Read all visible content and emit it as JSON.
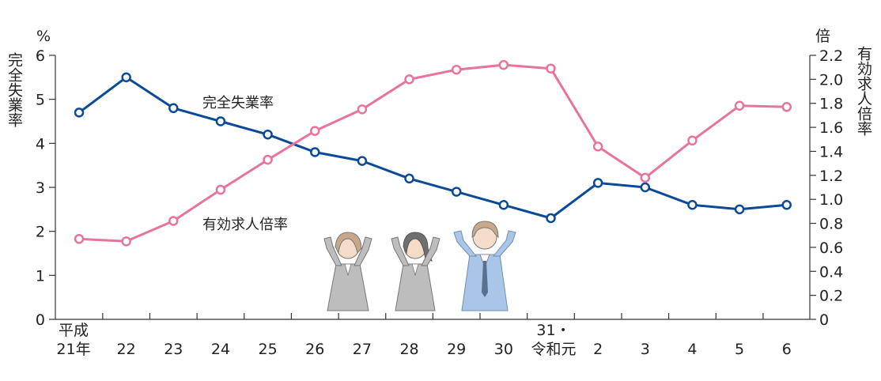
{
  "chart_data": {
    "type": "line",
    "categories": [
      [
        "平成",
        "21年"
      ],
      [
        "",
        "22"
      ],
      [
        "",
        "23"
      ],
      [
        "",
        "24"
      ],
      [
        "",
        "25"
      ],
      [
        "",
        "26"
      ],
      [
        "",
        "27"
      ],
      [
        "",
        "28"
      ],
      [
        "",
        "29"
      ],
      [
        "",
        "30"
      ],
      [
        "31・",
        "令和元"
      ],
      [
        "",
        "2"
      ],
      [
        "",
        "3"
      ],
      [
        "",
        "4"
      ],
      [
        "",
        "5"
      ],
      [
        "",
        "6"
      ]
    ],
    "left_axis": {
      "unit": "%",
      "label": "完全失業率",
      "ylim": [
        0,
        6
      ],
      "ticks": [
        "0",
        "1",
        "2",
        "3",
        "4",
        "5",
        "6"
      ]
    },
    "right_axis": {
      "unit": "倍",
      "label": "有効求人倍率",
      "ylim": [
        0,
        2.2
      ],
      "ticks": [
        "0",
        "0.2",
        "0.4",
        "0.6",
        "0.8",
        "1.0",
        "1.2",
        "1.4",
        "1.6",
        "1.8",
        "2.0",
        "2.2"
      ]
    },
    "series": [
      {
        "name": "完全失業率",
        "axis": "left",
        "color": "#0a4a96",
        "values": [
          4.7,
          5.5,
          4.8,
          4.5,
          4.2,
          3.8,
          3.6,
          3.2,
          2.9,
          2.6,
          2.3,
          3.1,
          3.0,
          2.6,
          2.5,
          2.6
        ]
      },
      {
        "name": "有効求人倍率",
        "axis": "right",
        "color": "#e8739f",
        "values": [
          0.67,
          0.65,
          0.82,
          1.08,
          1.33,
          1.57,
          1.75,
          2.0,
          2.08,
          2.12,
          2.09,
          1.44,
          1.18,
          1.49,
          1.78,
          1.77
        ]
      }
    ]
  },
  "illustration": {
    "description_icon": "cheering-office-workers-illustration",
    "colors": {
      "woman_suit": "#bdbdbd",
      "man_suit": "#a9c6e8",
      "hair": "#c7a98a"
    }
  }
}
